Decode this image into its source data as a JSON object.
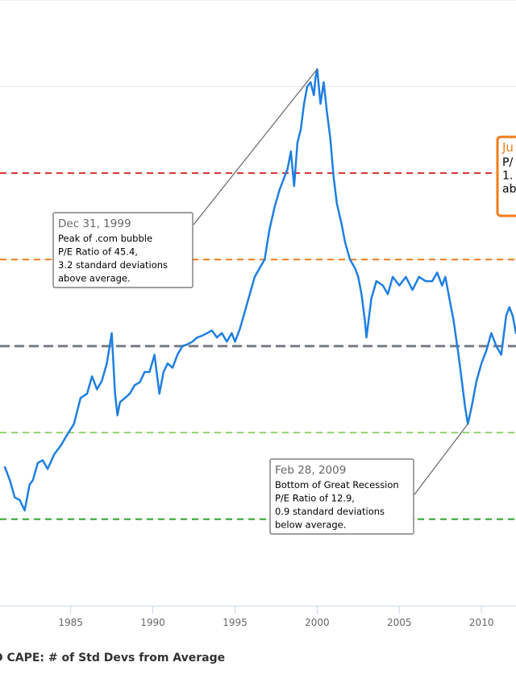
{
  "chart_data": {
    "type": "line",
    "series": [
      {
        "name": "CAPE: # of Std Devs from Average",
        "color": "#1f7fe0",
        "x": [
          1981.0,
          1981.3,
          1981.6,
          1981.9,
          1982.2,
          1982.5,
          1982.7,
          1983.0,
          1983.3,
          1983.6,
          1984.0,
          1984.4,
          1984.8,
          1985.2,
          1985.6,
          1986.0,
          1986.3,
          1986.6,
          1986.9,
          1987.2,
          1987.5,
          1987.7,
          1987.85,
          1988.0,
          1988.3,
          1988.6,
          1988.9,
          1989.2,
          1989.5,
          1989.8,
          1990.1,
          1990.4,
          1990.65,
          1990.9,
          1991.2,
          1991.5,
          1991.8,
          1992.1,
          1992.4,
          1992.7,
          1993.0,
          1993.3,
          1993.6,
          1993.9,
          1994.2,
          1994.5,
          1994.8,
          1995.0,
          1995.3,
          1995.6,
          1995.9,
          1996.2,
          1996.5,
          1996.8,
          1997.1,
          1997.4,
          1997.7,
          1997.9,
          1998.2,
          1998.4,
          1998.6,
          1998.8,
          1999.0,
          1999.2,
          1999.4,
          1999.6,
          1999.8,
          1999.9,
          2000.0,
          2000.2,
          2000.4,
          2000.6,
          2000.8,
          2001.0,
          2001.2,
          2001.5,
          2001.7,
          2002.0,
          2002.3,
          2002.5,
          2002.7,
          2002.9,
          2003.0,
          2003.3,
          2003.6,
          2004.0,
          2004.3,
          2004.6,
          2005.0,
          2005.4,
          2005.8,
          2006.2,
          2006.6,
          2007.0,
          2007.3,
          2007.6,
          2007.8,
          2008.0,
          2008.3,
          2008.6,
          2008.9,
          2009.0,
          2009.17,
          2009.4,
          2009.7,
          2010.0,
          2010.3,
          2010.6,
          2010.9,
          2011.2,
          2011.5,
          2011.7,
          2011.9,
          2012.1
        ],
        "y": [
          -1.4,
          -1.55,
          -1.75,
          -1.78,
          -1.9,
          -1.6,
          -1.55,
          -1.35,
          -1.32,
          -1.42,
          -1.25,
          -1.15,
          -1.02,
          -0.9,
          -0.6,
          -0.55,
          -0.35,
          -0.5,
          -0.4,
          -0.2,
          0.15,
          -0.55,
          -0.8,
          -0.65,
          -0.6,
          -0.55,
          -0.45,
          -0.42,
          -0.3,
          -0.3,
          -0.1,
          -0.55,
          -0.3,
          -0.2,
          -0.25,
          -0.1,
          0.0,
          0.02,
          0.05,
          0.1,
          0.12,
          0.15,
          0.18,
          0.1,
          0.15,
          0.05,
          0.15,
          0.05,
          0.2,
          0.4,
          0.6,
          0.8,
          0.9,
          1.0,
          1.35,
          1.6,
          1.8,
          1.9,
          2.05,
          2.25,
          1.85,
          2.35,
          2.5,
          2.8,
          3.0,
          3.05,
          2.9,
          3.1,
          3.2,
          2.8,
          3.05,
          2.7,
          2.4,
          1.95,
          1.65,
          1.4,
          1.2,
          1.0,
          0.9,
          0.8,
          0.6,
          0.3,
          0.1,
          0.55,
          0.75,
          0.7,
          0.6,
          0.8,
          0.7,
          0.8,
          0.65,
          0.8,
          0.75,
          0.75,
          0.85,
          0.7,
          0.8,
          0.6,
          0.3,
          -0.1,
          -0.55,
          -0.7,
          -0.9,
          -0.7,
          -0.4,
          -0.2,
          -0.05,
          0.15,
          0.0,
          -0.1,
          0.35,
          0.45,
          0.35,
          0.15
        ]
      }
    ],
    "reference_lines": [
      {
        "value": 2,
        "color": "#d62f2f",
        "style": "dashed"
      },
      {
        "value": 1,
        "color": "#f07c1a",
        "style": "dashed"
      },
      {
        "value": 0,
        "color": "#777c87",
        "style": "dashed"
      },
      {
        "value": -1,
        "color": "#92d36e",
        "style": "dashed"
      },
      {
        "value": -2,
        "color": "#2ca02c",
        "style": "dashed"
      }
    ],
    "annotations": [
      {
        "x": 2000.0,
        "y": 3.2,
        "title": "Dec 31, 1999",
        "lines": [
          "Peak of .com bubble",
          "P/E Ratio of 45.4,",
          "3.2 standard deviations",
          "above average."
        ],
        "border_color": "#666666"
      },
      {
        "x": 2009.17,
        "y": -0.9,
        "title": "Feb 28, 2009",
        "lines": [
          "Bottom of Great Recession",
          "P/E Ratio of 12.9,",
          "0.9 standard deviations",
          "below average."
        ],
        "border_color": "#666666"
      },
      {
        "title": "Ju",
        "lines": [
          "P/",
          "1.",
          "ab"
        ],
        "border_color": "#f07c1a"
      }
    ],
    "x_ticks": [
      1985,
      1990,
      1995,
      2000,
      2005,
      2010
    ],
    "xlim": [
      1980.7,
      2012.1
    ],
    "ylim": [
      -3,
      4
    ],
    "grid": true,
    "legend": "bottom-left",
    "legend_label": "D CAPE: # of Std Devs from Average",
    "title": "",
    "xlabel": "",
    "ylabel": ""
  }
}
